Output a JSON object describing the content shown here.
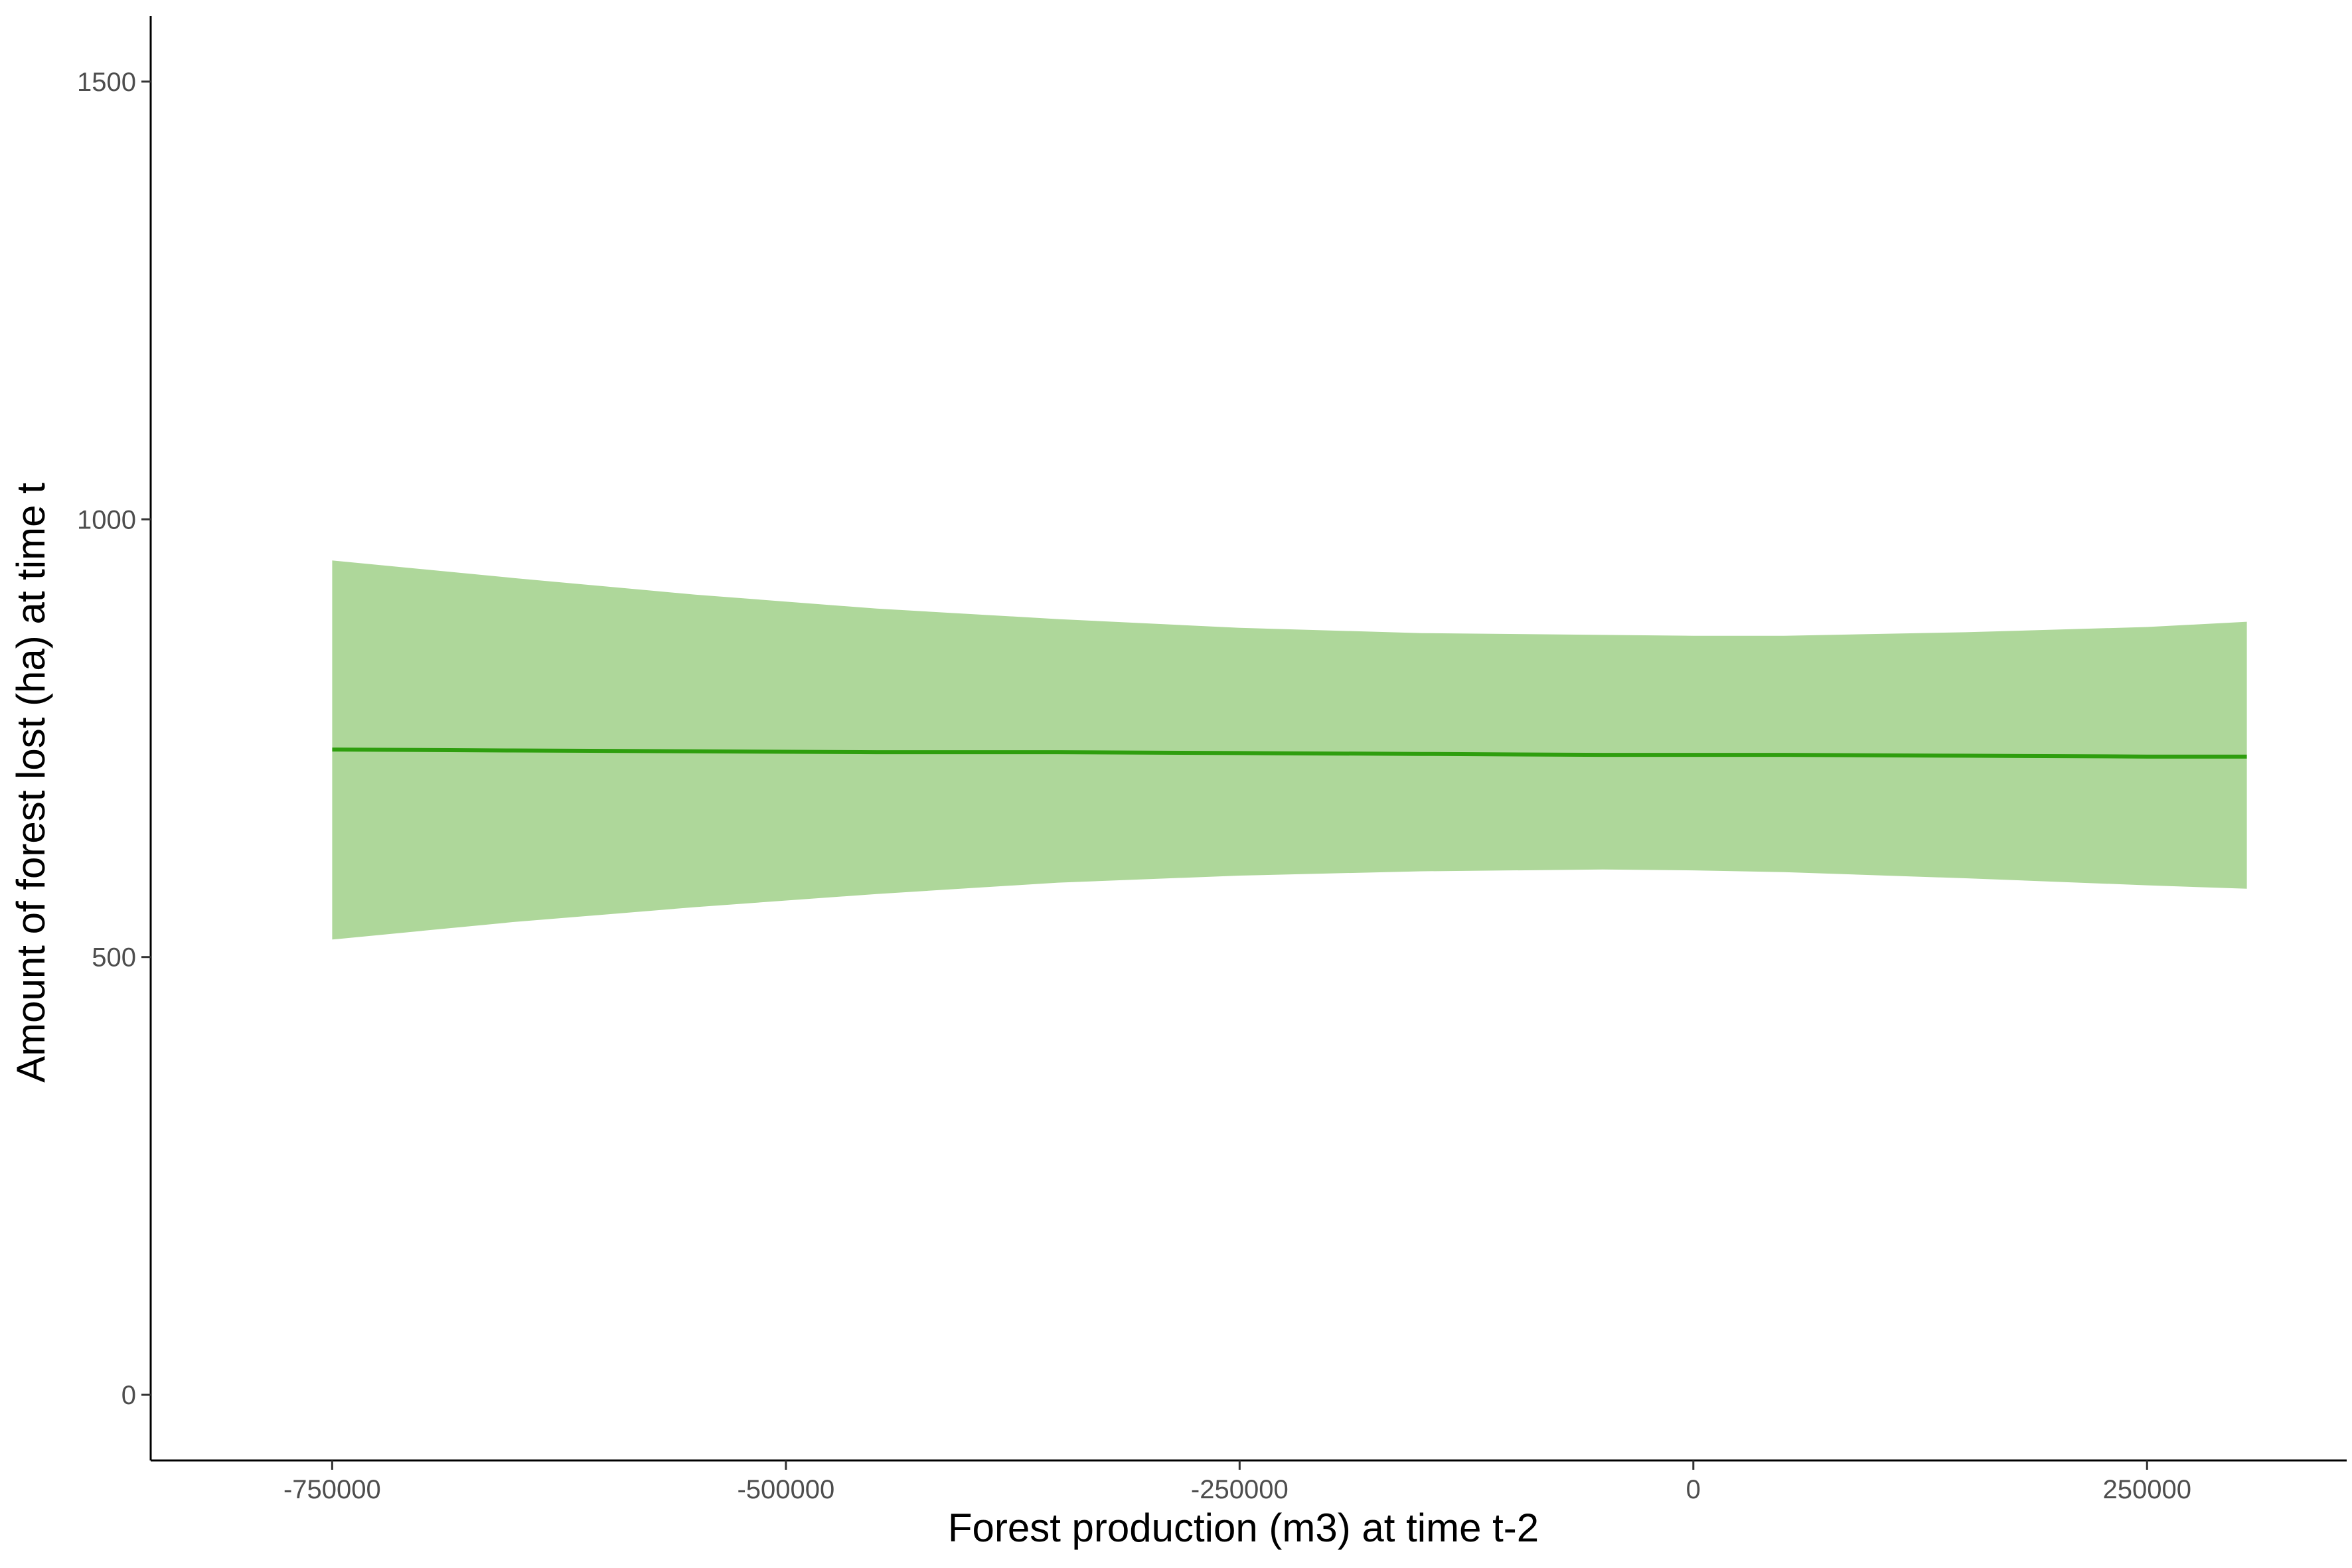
{
  "chart_data": {
    "type": "line",
    "title": "",
    "xlabel": "Forest production (m3) at time t-2",
    "ylabel": "Amount of forest lost (ha) at time t",
    "xlim": [
      -850000,
      360000
    ],
    "ylim": [
      -75,
      1575
    ],
    "x_ticks": [
      {
        "value": -750000,
        "label": "-750000"
      },
      {
        "value": -500000,
        "label": "-500000"
      },
      {
        "value": -250000,
        "label": "-250000"
      },
      {
        "value": 0,
        "label": "0"
      },
      {
        "value": 250000,
        "label": "250000"
      }
    ],
    "y_ticks": [
      {
        "value": 0,
        "label": "0"
      },
      {
        "value": 500,
        "label": "500"
      },
      {
        "value": 1000,
        "label": "1000"
      },
      {
        "value": 1500,
        "label": "1500"
      }
    ],
    "grid": false,
    "series": [
      {
        "color": "#2e9e0e",
        "ribbon_color": "#aed79a",
        "x": [
          -750000,
          -650000,
          -550000,
          -450000,
          -350000,
          -250000,
          -150000,
          -50000,
          0,
          50000,
          150000,
          250000,
          305000
        ],
        "y": [
          737,
          736,
          735,
          734,
          734,
          733,
          732,
          731,
          731,
          731,
          730,
          729,
          729
        ],
        "lower": [
          520,
          540,
          557,
          572,
          585,
          593,
          598,
          600,
          599,
          597,
          590,
          582,
          578
        ],
        "upper": [
          953,
          933,
          914,
          898,
          886,
          876,
          870,
          868,
          867,
          867,
          871,
          877,
          883
        ]
      }
    ]
  }
}
